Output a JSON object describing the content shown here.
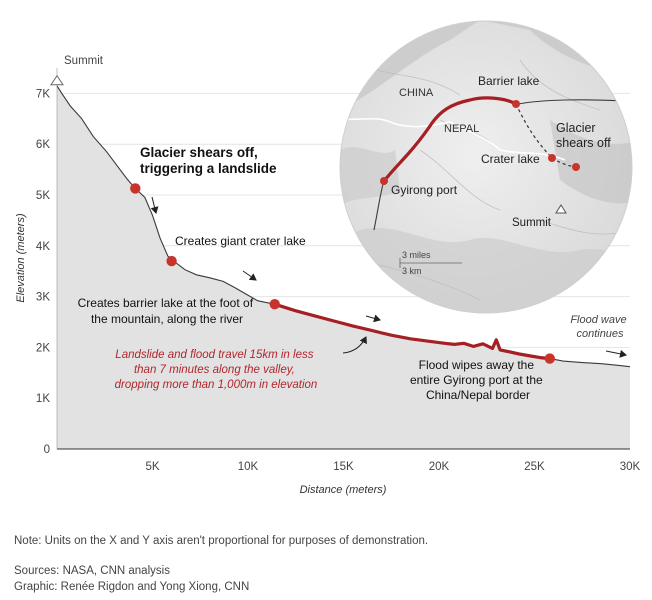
{
  "chart_data": {
    "type": "area",
    "xlabel": "Distance (meters)",
    "ylabel": "Elevation (meters)",
    "xlim": [
      0,
      30000
    ],
    "ylim": [
      0,
      7500
    ],
    "x_ticks": [
      5000,
      10000,
      15000,
      20000,
      25000,
      30000
    ],
    "x_tick_labels": [
      "5K",
      "10K",
      "15K",
      "20K",
      "25K",
      "30K"
    ],
    "y_ticks": [
      0,
      1000,
      2000,
      3000,
      4000,
      5000,
      6000,
      7000
    ],
    "y_tick_labels": [
      "0",
      "1K",
      "2K",
      "3K",
      "4K",
      "5K",
      "6K",
      "7K"
    ],
    "profile": {
      "x": [
        0,
        250,
        700,
        1300,
        1900,
        2600,
        3200,
        3700,
        4100,
        4600,
        5000,
        5400,
        5800,
        6100,
        6700,
        7300,
        8000,
        8700,
        9300,
        9900,
        10500,
        11000,
        11400
      ],
      "y": [
        7150,
        7000,
        6750,
        6500,
        6150,
        5850,
        5550,
        5300,
        5130,
        4950,
        4600,
        4150,
        3800,
        3700,
        3530,
        3430,
        3370,
        3300,
        3180,
        3050,
        2920,
        2880,
        2850
      ]
    },
    "flood_path": {
      "x": [
        11400,
        12500,
        13500,
        14500,
        15500,
        16500,
        17500,
        18500,
        19500,
        20300,
        20800,
        21300,
        21800,
        22300,
        22800,
        23000,
        23200,
        23600,
        24200,
        24800,
        25300,
        25800
      ],
      "y": [
        2850,
        2720,
        2620,
        2520,
        2420,
        2330,
        2240,
        2170,
        2120,
        2080,
        2060,
        2080,
        2020,
        2070,
        1980,
        2150,
        1950,
        1920,
        1870,
        1830,
        1800,
        1780
      ]
    },
    "tail": {
      "x": [
        25800,
        26500,
        27500,
        28500,
        29300,
        30000
      ],
      "y": [
        1780,
        1730,
        1700,
        1680,
        1650,
        1620
      ]
    },
    "events": [
      {
        "x": 0,
        "y": 7150,
        "label": [
          "Summit"
        ],
        "marker": "triangle"
      },
      {
        "x": 4100,
        "y": 5130,
        "label": [
          "Glacier shears off,",
          "triggering a landslide"
        ],
        "marker": "dot"
      },
      {
        "x": 6000,
        "y": 3700,
        "label": [
          "Creates giant crater lake"
        ],
        "marker": "dot"
      },
      {
        "x": 11400,
        "y": 2850,
        "label": [
          "Creates barrier lake at the foot of",
          "the mountain, along the river"
        ],
        "marker": "dot"
      },
      {
        "x": 25800,
        "y": 1780,
        "label": [
          "Flood wipes away the",
          "entire Gyirong port at the",
          "China/Nepal border"
        ],
        "marker": "dot"
      }
    ],
    "annotations": {
      "travel": [
        "Landslide and flood travel 15km in less",
        "than 7 minutes along the valley,",
        "dropping more than 1,000m in elevation"
      ],
      "continues": [
        "Flood wave",
        "continues"
      ]
    },
    "colors": {
      "area": "#e2e2e2",
      "line": "#3a3a3a",
      "flood": "#a51f24",
      "dot": "#c8342c",
      "annotation": "#b2262b"
    }
  },
  "map": {
    "labels": {
      "china": "CHINA",
      "nepal": "NEPAL",
      "barrier_lake": "Barrier lake",
      "crater_lake": "Crater lake",
      "glacier": [
        "Glacier",
        "shears off"
      ],
      "gyirong": "Gyirong port",
      "summit": "Summit",
      "scale_miles": "3 miles",
      "scale_km": "3 km"
    }
  },
  "footer": {
    "note": "Note: Units on the X and Y axis aren't proportional for purposes of demonstration.",
    "sources": "Sources: NASA, CNN analysis",
    "graphic": "Graphic: Renée Rigdon and Yong Xiong, CNN"
  }
}
